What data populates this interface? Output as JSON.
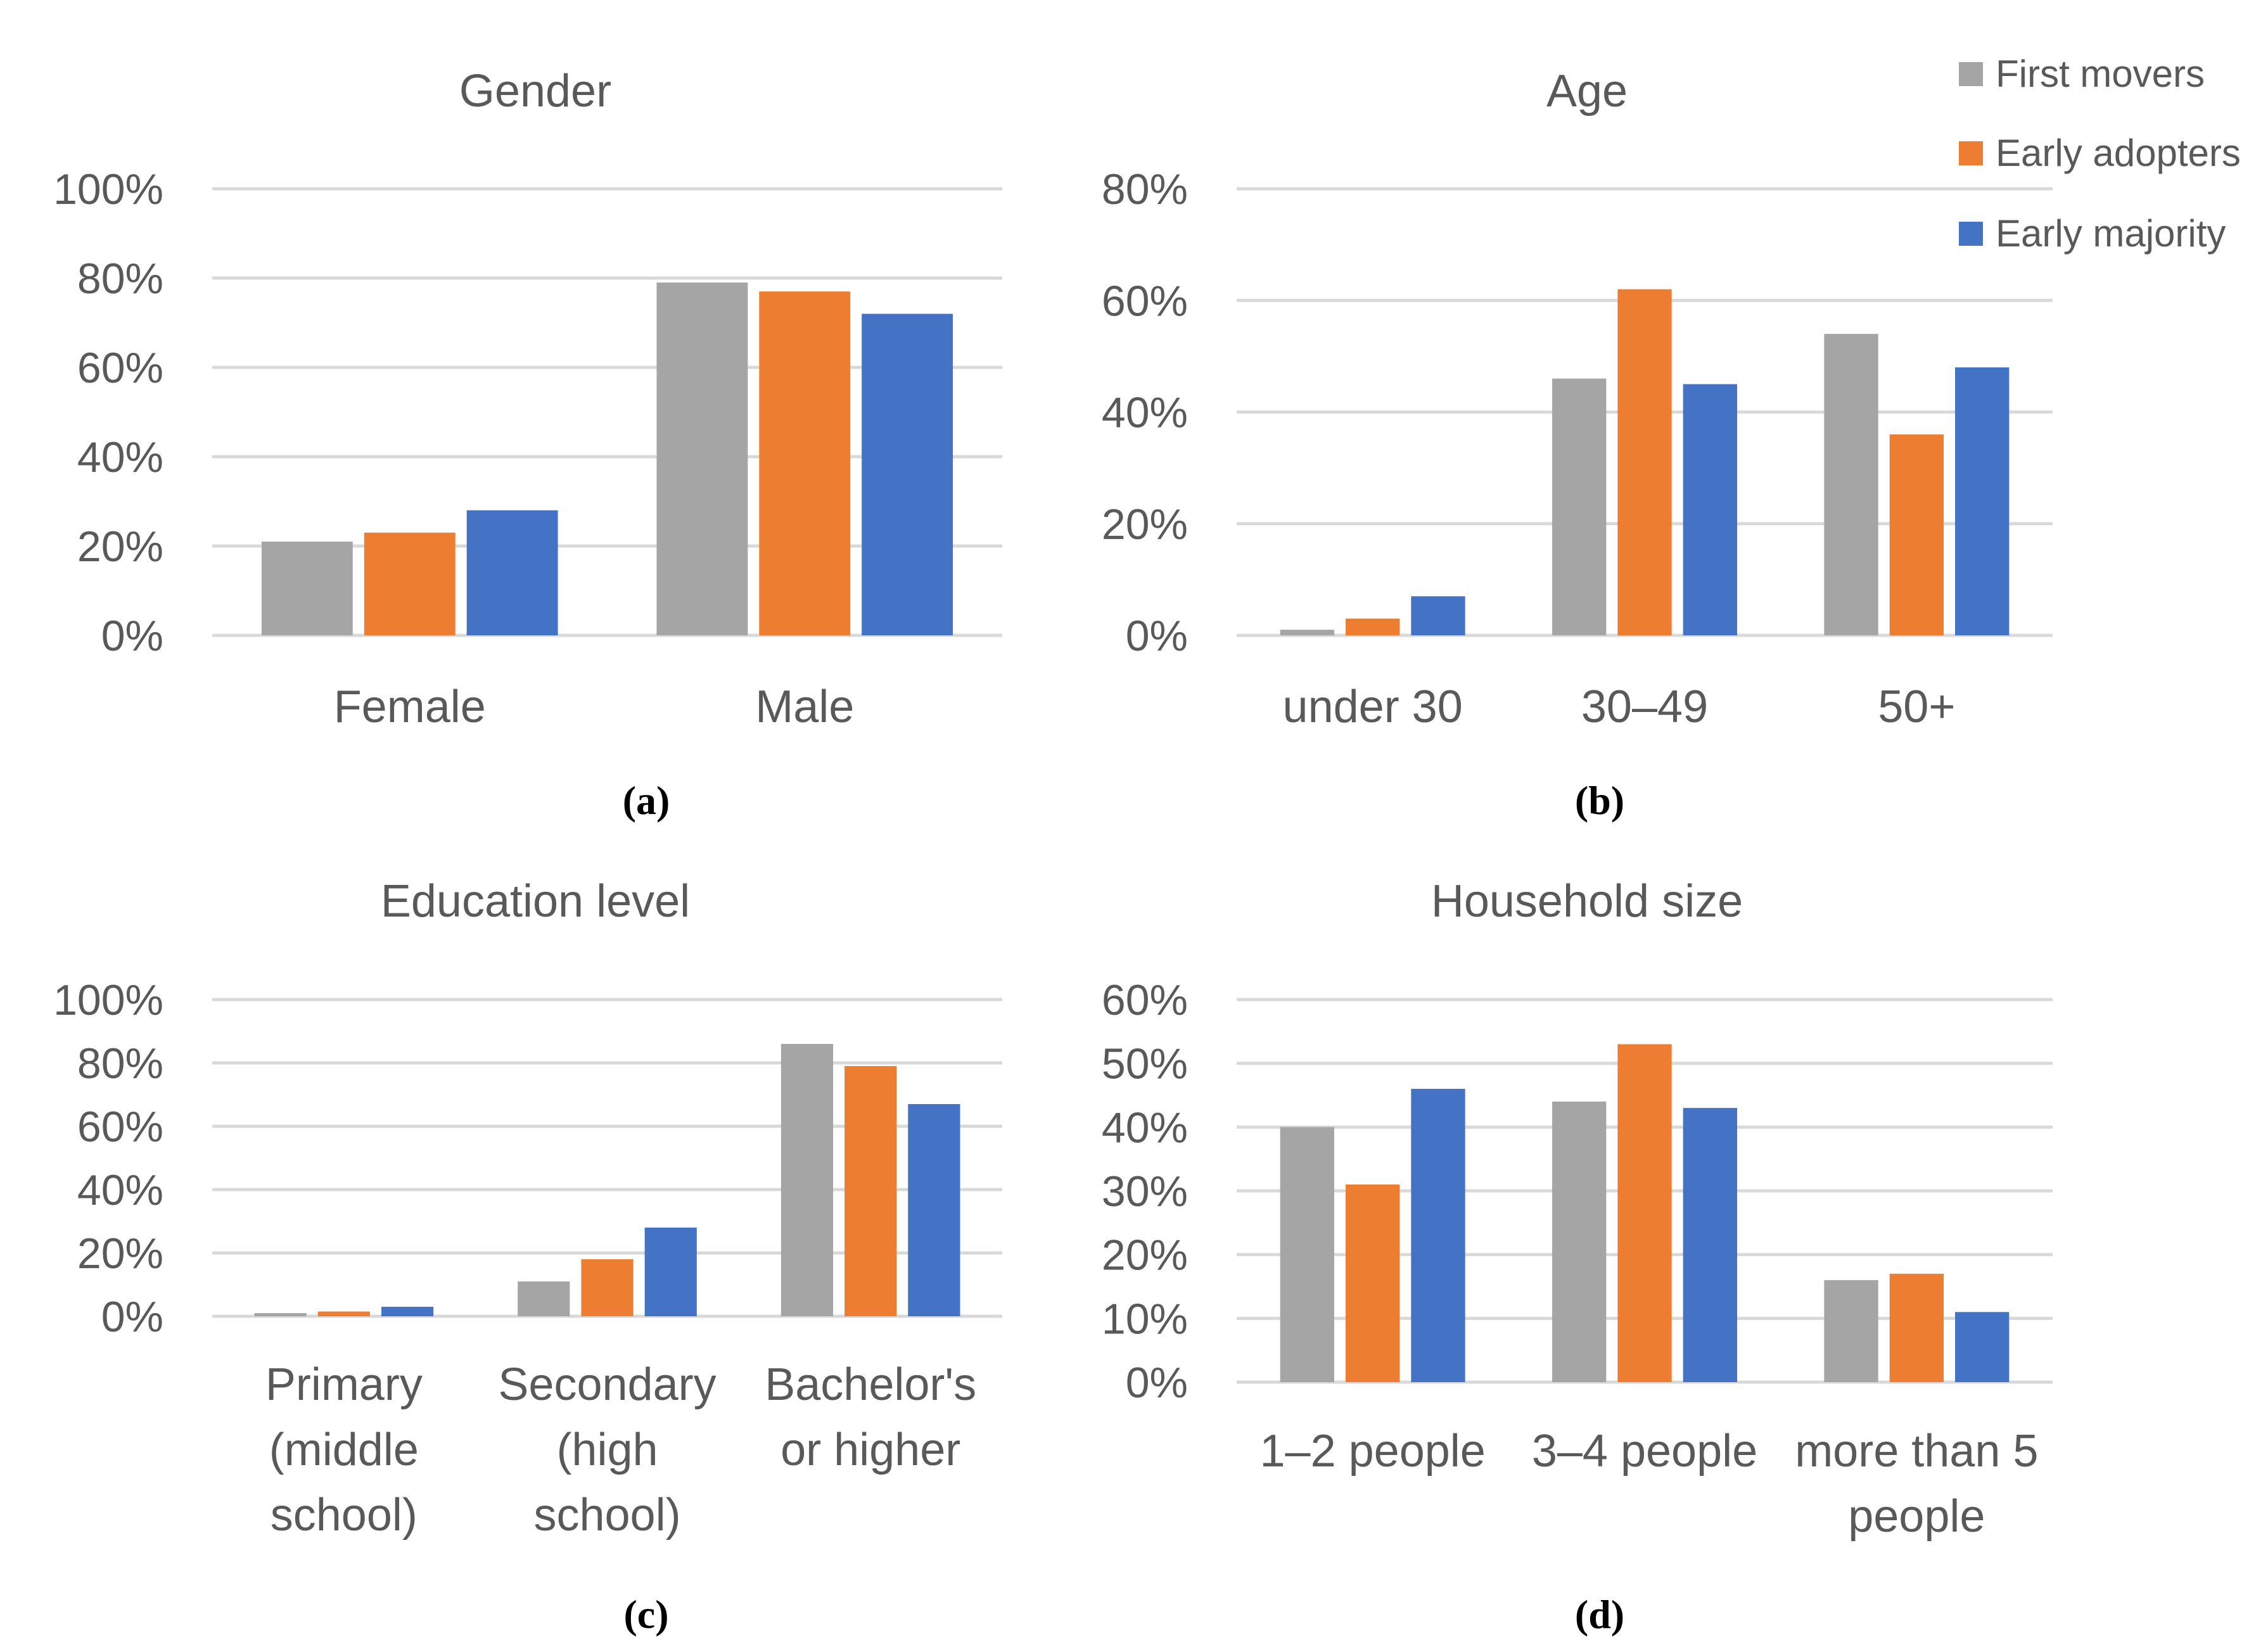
{
  "legend": {
    "entries": [
      {
        "name": "First movers",
        "color": "#A5A5A5"
      },
      {
        "name": "Early adopters",
        "color": "#ED7D31"
      },
      {
        "name": "Early majority",
        "color": "#4472C4"
      }
    ]
  },
  "chart_data": [
    {
      "type": "bar",
      "title": "Gender",
      "panel_label": "(a)",
      "categories": [
        "Female",
        "Male"
      ],
      "ylim": [
        0,
        100
      ],
      "yticks": [
        "0%",
        "20%",
        "40%",
        "60%",
        "80%",
        "100%"
      ],
      "grid": true,
      "series": [
        {
          "name": "First movers",
          "values": [
            21,
            79
          ]
        },
        {
          "name": "Early adopters",
          "values": [
            23,
            77
          ]
        },
        {
          "name": "Early majority",
          "values": [
            28,
            72
          ]
        }
      ]
    },
    {
      "type": "bar",
      "title": "Age",
      "panel_label": "(b)",
      "categories": [
        "under 30",
        "30–49",
        "50+"
      ],
      "ylim": [
        0,
        80
      ],
      "yticks": [
        "0%",
        "20%",
        "40%",
        "60%",
        "80%"
      ],
      "grid": true,
      "series": [
        {
          "name": "First movers",
          "values": [
            1,
            46,
            54
          ]
        },
        {
          "name": "Early adopters",
          "values": [
            3,
            62,
            36
          ]
        },
        {
          "name": "Early majority",
          "values": [
            7,
            45,
            48
          ]
        }
      ]
    },
    {
      "type": "bar",
      "title": "Education level",
      "panel_label": "(c)",
      "categories": [
        "Primary (middle school)",
        "Secondary (high school)",
        "Bachelor's or higher"
      ],
      "category_lines": [
        [
          "Primary",
          "(middle",
          "school)"
        ],
        [
          "Secondary",
          "(high",
          "school)"
        ],
        [
          "Bachelor's",
          "or higher"
        ]
      ],
      "ylim": [
        0,
        100
      ],
      "yticks": [
        "0%",
        "20%",
        "40%",
        "60%",
        "80%",
        "100%"
      ],
      "grid": true,
      "series": [
        {
          "name": "First movers",
          "values": [
            1,
            11,
            86
          ]
        },
        {
          "name": "Early adopters",
          "values": [
            1.5,
            18,
            79
          ]
        },
        {
          "name": "Early majority",
          "values": [
            3,
            28,
            67
          ]
        }
      ]
    },
    {
      "type": "bar",
      "title": "Household size",
      "panel_label": "(d)",
      "categories": [
        "1–2 people",
        "3–4 people",
        "more than 5 people"
      ],
      "category_lines": [
        [
          "1–2 people"
        ],
        [
          "3–4 people"
        ],
        [
          "more than 5",
          "people"
        ]
      ],
      "ylim": [
        0,
        60
      ],
      "yticks": [
        "0%",
        "10%",
        "20%",
        "30%",
        "40%",
        "50%",
        "60%"
      ],
      "grid": true,
      "series": [
        {
          "name": "First movers",
          "values": [
            40,
            44,
            16
          ]
        },
        {
          "name": "Early adopters",
          "values": [
            31,
            53,
            17
          ]
        },
        {
          "name": "Early majority",
          "values": [
            46,
            43,
            11
          ]
        }
      ]
    }
  ]
}
